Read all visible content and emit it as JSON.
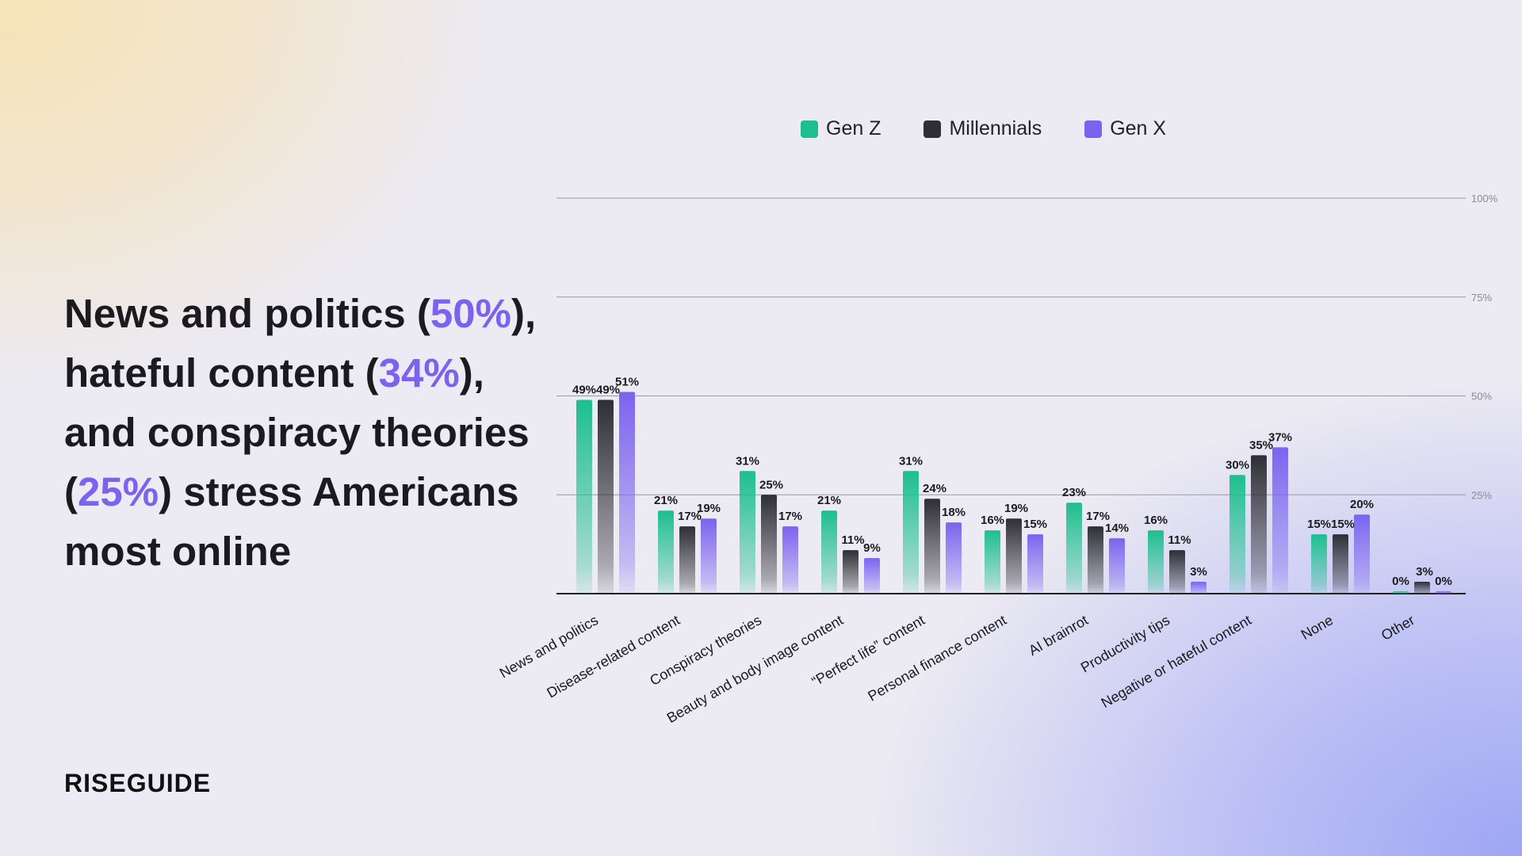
{
  "headline": {
    "parts": [
      "News and politics (",
      "50%",
      "), hateful content (",
      "34%",
      "), and conspiracy theories (",
      "25%",
      ") stress Americans most online"
    ]
  },
  "logo": "RISEGUIDE",
  "colors": {
    "gen_z": "#1dbf8e",
    "millennials": "#2e2e35",
    "gen_x": "#7b63f0",
    "highlight": "#7b63f0"
  },
  "chart_data": {
    "type": "bar",
    "title": "",
    "xlabel": "",
    "ylabel": "",
    "ylim": [
      0,
      100
    ],
    "yticks": [
      "25%",
      "50%",
      "75%",
      "100%"
    ],
    "grid": true,
    "legend": "top-center",
    "categories": [
      "News and politics",
      "Disease-related content",
      "Conspiracy theories",
      "Beauty and body image content",
      "“Perfect life” content",
      "Personal finance content",
      "AI brainrot",
      "Productivity tips",
      "Negative or hateful content",
      "None",
      "Other"
    ],
    "series": [
      {
        "name": "Gen Z",
        "color": "#1dbf8e",
        "values": [
          49,
          21,
          31,
          21,
          31,
          16,
          23,
          16,
          30,
          15,
          0
        ]
      },
      {
        "name": "Millennials",
        "color": "#2e2e35",
        "values": [
          49,
          17,
          25,
          11,
          24,
          19,
          17,
          11,
          35,
          15,
          3
        ]
      },
      {
        "name": "Gen X",
        "color": "#7b63f0",
        "values": [
          51,
          19,
          17,
          9,
          18,
          15,
          14,
          3,
          37,
          20,
          0
        ]
      }
    ]
  }
}
